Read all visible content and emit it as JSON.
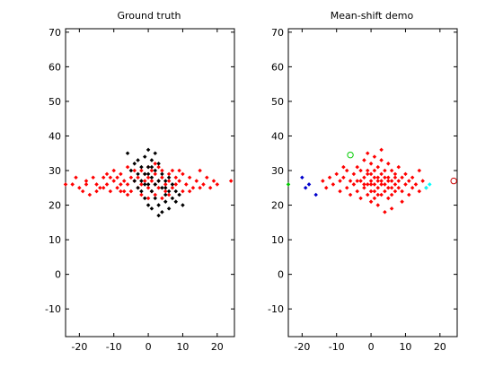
{
  "chart_data": [
    {
      "type": "scatter",
      "title": "Ground truth",
      "xlabel": "",
      "ylabel": "",
      "xlim": [
        -24,
        25
      ],
      "ylim": [
        -18,
        71
      ],
      "xticks": [
        -20,
        -10,
        0,
        10,
        20
      ],
      "yticks": [
        -10,
        0,
        10,
        20,
        30,
        40,
        50,
        60,
        70
      ],
      "grid": false,
      "legend": "none",
      "series": [
        {
          "color": "#ff0000",
          "marker": "dot",
          "points": [
            [
              -24,
              26
            ],
            [
              -22,
              26
            ],
            [
              -21,
              28
            ],
            [
              -20,
              25
            ],
            [
              -19,
              24
            ],
            [
              -18,
              27
            ],
            [
              -17,
              23
            ],
            [
              -16,
              28
            ],
            [
              -15,
              26
            ],
            [
              -14,
              25
            ],
            [
              -13,
              28
            ],
            [
              -12,
              26
            ],
            [
              -12,
              29
            ],
            [
              -11,
              24
            ],
            [
              -10,
              27
            ],
            [
              -10,
              30
            ],
            [
              -9,
              25
            ],
            [
              -9,
              28
            ],
            [
              -8,
              26
            ],
            [
              -8,
              29
            ],
            [
              -7,
              24
            ],
            [
              -7,
              27
            ],
            [
              -6,
              31
            ],
            [
              -6,
              26
            ],
            [
              -5,
              28
            ],
            [
              -5,
              24
            ],
            [
              -4,
              27
            ],
            [
              -4,
              30
            ],
            [
              -3,
              25
            ],
            [
              -3,
              28
            ],
            [
              -2,
              26
            ],
            [
              -2,
              23
            ],
            [
              -1,
              29
            ],
            [
              -1,
              27
            ],
            [
              0,
              25
            ],
            [
              0,
              28
            ],
            [
              0,
              31
            ],
            [
              1,
              24
            ],
            [
              1,
              27
            ],
            [
              1,
              30
            ],
            [
              2,
              26
            ],
            [
              2,
              29
            ],
            [
              2,
              23
            ],
            [
              3,
              27
            ],
            [
              3,
              25
            ],
            [
              4,
              28
            ],
            [
              4,
              30
            ],
            [
              5,
              26
            ],
            [
              5,
              24
            ],
            [
              6,
              27
            ],
            [
              6,
              29
            ],
            [
              7,
              25
            ],
            [
              8,
              28
            ],
            [
              8,
              26
            ],
            [
              9,
              27
            ],
            [
              10,
              24
            ],
            [
              10,
              29
            ],
            [
              11,
              26
            ],
            [
              12,
              28
            ],
            [
              13,
              25
            ],
            [
              14,
              27
            ],
            [
              15,
              30
            ],
            [
              16,
              26
            ],
            [
              17,
              28
            ],
            [
              18,
              25
            ],
            [
              19,
              27
            ],
            [
              20,
              26
            ],
            [
              24,
              27
            ],
            [
              -18,
              26
            ],
            [
              -15,
              24
            ],
            [
              -11,
              28
            ],
            [
              -6,
              23
            ],
            [
              3,
              31
            ],
            [
              7,
              30
            ],
            [
              12,
              24
            ],
            [
              15,
              25
            ],
            [
              -2,
              30
            ],
            [
              0,
              22
            ],
            [
              2,
              32
            ],
            [
              -8,
              24
            ],
            [
              6,
              23
            ],
            [
              9,
              30
            ],
            [
              -13,
              25
            ],
            [
              4,
              22
            ]
          ]
        },
        {
          "color": "#000000",
          "marker": "dot",
          "points": [
            [
              -6,
              35
            ],
            [
              -5,
              30
            ],
            [
              -4,
              32
            ],
            [
              -3,
              29
            ],
            [
              -3,
              33
            ],
            [
              -2,
              31
            ],
            [
              -2,
              27
            ],
            [
              -1,
              34
            ],
            [
              -1,
              29
            ],
            [
              0,
              36
            ],
            [
              0,
              31
            ],
            [
              0,
              26
            ],
            [
              1,
              33
            ],
            [
              1,
              28
            ],
            [
              1,
              24
            ],
            [
              2,
              30
            ],
            [
              2,
              35
            ],
            [
              2,
              22
            ],
            [
              3,
              27
            ],
            [
              3,
              32
            ],
            [
              3,
              20
            ],
            [
              4,
              25
            ],
            [
              4,
              29
            ],
            [
              4,
              18
            ],
            [
              5,
              23
            ],
            [
              5,
              27
            ],
            [
              5,
              21
            ],
            [
              6,
              24
            ],
            [
              6,
              19
            ],
            [
              7,
              22
            ],
            [
              7,
              26
            ],
            [
              8,
              21
            ],
            [
              8,
              24
            ],
            [
              9,
              23
            ],
            [
              10,
              20
            ],
            [
              -1,
              22
            ],
            [
              0,
              20
            ],
            [
              1,
              19
            ],
            [
              -4,
              27
            ],
            [
              -2,
              24
            ],
            [
              3,
              17
            ],
            [
              6,
              28
            ],
            [
              2,
              26
            ],
            [
              -3,
              25
            ],
            [
              0,
              29
            ],
            [
              1,
              31
            ],
            [
              -1,
              26
            ],
            [
              5,
              25
            ]
          ]
        }
      ]
    },
    {
      "type": "scatter",
      "title": "Mean-shift demo",
      "xlabel": "",
      "ylabel": "",
      "xlim": [
        -24,
        25
      ],
      "ylim": [
        -18,
        71
      ],
      "xticks": [
        -20,
        -10,
        0,
        10,
        20
      ],
      "yticks": [
        -10,
        0,
        10,
        20,
        30,
        40,
        50,
        60,
        70
      ],
      "grid": false,
      "legend": "none",
      "series": [
        {
          "color": "#ff0000",
          "marker": "dot",
          "points": [
            [
              -14,
              27
            ],
            [
              -13,
              25
            ],
            [
              -12,
              28
            ],
            [
              -11,
              26
            ],
            [
              -10,
              29
            ],
            [
              -9,
              27
            ],
            [
              -9,
              24
            ],
            [
              -8,
              28
            ],
            [
              -7,
              25
            ],
            [
              -7,
              30
            ],
            [
              -6,
              27
            ],
            [
              -5,
              26
            ],
            [
              -5,
              29
            ],
            [
              -4,
              31
            ],
            [
              -4,
              24
            ],
            [
              -3,
              27
            ],
            [
              -3,
              30
            ],
            [
              -2,
              25
            ],
            [
              -2,
              28
            ],
            [
              -2,
              33
            ],
            [
              -1,
              26
            ],
            [
              -1,
              30
            ],
            [
              -1,
              23
            ],
            [
              0,
              27
            ],
            [
              0,
              32
            ],
            [
              0,
              29
            ],
            [
              0,
              24
            ],
            [
              1,
              26
            ],
            [
              1,
              30
            ],
            [
              1,
              34
            ],
            [
              1,
              22
            ],
            [
              2,
              28
            ],
            [
              2,
              25
            ],
            [
              2,
              31
            ],
            [
              2,
              20
            ],
            [
              3,
              27
            ],
            [
              3,
              29
            ],
            [
              3,
              23
            ],
            [
              3,
              33
            ],
            [
              4,
              26
            ],
            [
              4,
              30
            ],
            [
              4,
              24
            ],
            [
              4,
              18
            ],
            [
              5,
              28
            ],
            [
              5,
              25
            ],
            [
              5,
              32
            ],
            [
              5,
              22
            ],
            [
              6,
              27
            ],
            [
              6,
              30
            ],
            [
              6,
              23
            ],
            [
              7,
              26
            ],
            [
              7,
              29
            ],
            [
              7,
              24
            ],
            [
              8,
              27
            ],
            [
              8,
              25
            ],
            [
              8,
              31
            ],
            [
              9,
              28
            ],
            [
              9,
              24
            ],
            [
              10,
              26
            ],
            [
              10,
              29
            ],
            [
              11,
              27
            ],
            [
              11,
              23
            ],
            [
              12,
              25
            ],
            [
              12,
              28
            ],
            [
              13,
              26
            ],
            [
              14,
              30
            ],
            [
              14,
              24
            ],
            [
              15,
              27
            ],
            [
              16,
              25
            ],
            [
              -6,
              23
            ],
            [
              -8,
              31
            ],
            [
              3,
              36
            ],
            [
              -1,
              35
            ],
            [
              9,
              21
            ],
            [
              6,
              19
            ],
            [
              0,
              21
            ],
            [
              -3,
              22
            ],
            [
              1,
              28
            ],
            [
              2,
              27
            ],
            [
              3,
              26
            ],
            [
              4,
              28
            ],
            [
              5,
              27
            ],
            [
              -2,
              26
            ],
            [
              -1,
              29
            ],
            [
              0,
              26
            ],
            [
              1,
              24
            ],
            [
              6,
              25
            ],
            [
              7,
              28
            ],
            [
              -4,
              27
            ],
            [
              2,
              23
            ]
          ]
        },
        {
          "color": "#0000cc",
          "marker": "dot",
          "points": [
            [
              -20,
              28
            ],
            [
              -19,
              25
            ],
            [
              -18,
              26
            ],
            [
              -16,
              23
            ]
          ]
        },
        {
          "color": "#00ffff",
          "marker": "dot",
          "points": [
            [
              16,
              25
            ],
            [
              17,
              26
            ]
          ]
        },
        {
          "color": "#00cc00",
          "marker": "dot",
          "points": [
            [
              -24,
              26
            ]
          ]
        },
        {
          "color": "#00cc00",
          "marker": "circle",
          "points": [
            [
              -6,
              34.5
            ]
          ]
        },
        {
          "color": "#cc0000",
          "marker": "circle",
          "points": [
            [
              24,
              27
            ]
          ]
        }
      ]
    }
  ]
}
